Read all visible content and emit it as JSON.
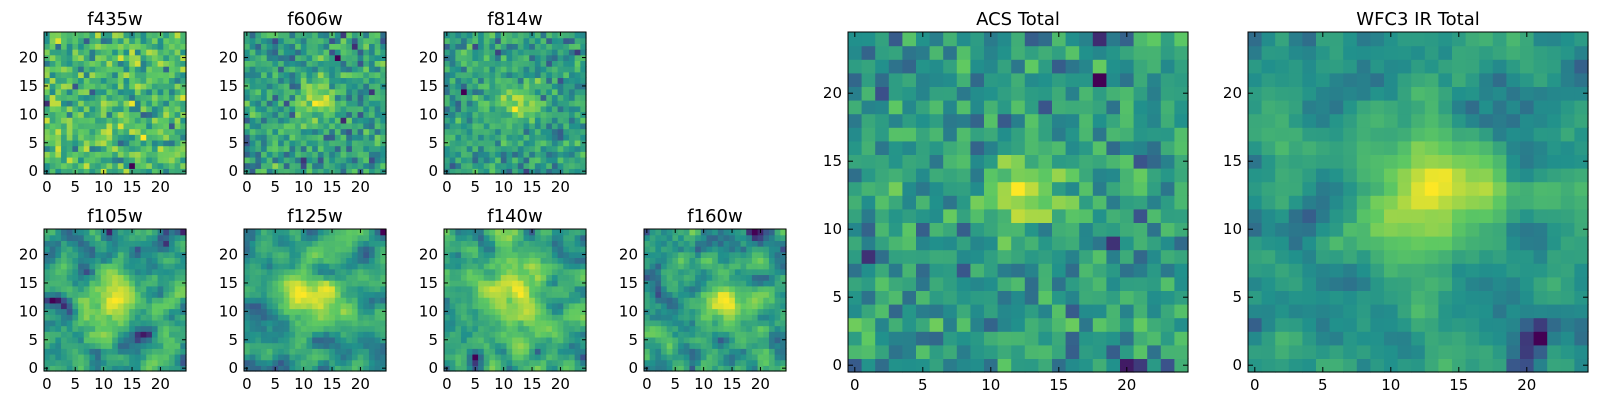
{
  "chart_data": [
    {
      "type": "heatmap",
      "title": "f435w",
      "grid_size": 25,
      "xlim": [
        -0.5,
        24.5
      ],
      "ylim": [
        -0.5,
        24.5
      ],
      "xticks": [
        0,
        5,
        10,
        15,
        20
      ],
      "yticks": [
        0,
        5,
        10,
        15,
        20
      ],
      "source_center": [
        12.5,
        12.5
      ],
      "source_amplitude": 0.0,
      "source_sigma": 2.5,
      "noise_level": 0.95,
      "smoothness": 0,
      "seed": 11
    },
    {
      "type": "heatmap",
      "title": "f606w",
      "grid_size": 25,
      "xlim": [
        -0.5,
        24.5
      ],
      "ylim": [
        -0.5,
        24.5
      ],
      "xticks": [
        0,
        5,
        10,
        15,
        20
      ],
      "yticks": [
        0,
        5,
        10,
        15,
        20
      ],
      "source_center": [
        12.5,
        12.5
      ],
      "source_amplitude": 1.0,
      "source_sigma": 2.2,
      "noise_level": 0.75,
      "smoothness": 0,
      "seed": 22
    },
    {
      "type": "heatmap",
      "title": "f814w",
      "grid_size": 25,
      "xlim": [
        -0.5,
        24.5
      ],
      "ylim": [
        -0.5,
        24.5
      ],
      "xticks": [
        0,
        5,
        10,
        15,
        20
      ],
      "yticks": [
        0,
        5,
        10,
        15,
        20
      ],
      "source_center": [
        12.5,
        12.5
      ],
      "source_amplitude": 1.1,
      "source_sigma": 2.2,
      "noise_level": 0.75,
      "smoothness": 0,
      "seed": 33
    },
    {
      "type": "heatmap",
      "title": "f105w",
      "grid_size": 25,
      "xlim": [
        -0.5,
        24.5
      ],
      "ylim": [
        -0.5,
        24.5
      ],
      "xticks": [
        0,
        5,
        10,
        15,
        20
      ],
      "yticks": [
        0,
        5,
        10,
        15,
        20
      ],
      "source_center": [
        12.5,
        13
      ],
      "source_amplitude": 0.9,
      "source_sigma": 3.0,
      "noise_level": 0.85,
      "smoothness": 1,
      "seed": 44
    },
    {
      "type": "heatmap",
      "title": "f125w",
      "grid_size": 25,
      "xlim": [
        -0.5,
        24.5
      ],
      "ylim": [
        -0.5,
        24.5
      ],
      "xticks": [
        0,
        5,
        10,
        15,
        20
      ],
      "yticks": [
        0,
        5,
        10,
        15,
        20
      ],
      "source_center": [
        12.5,
        12.5
      ],
      "source_amplitude": 1.0,
      "source_sigma": 3.5,
      "noise_level": 0.8,
      "smoothness": 1,
      "seed": 55
    },
    {
      "type": "heatmap",
      "title": "f140w",
      "grid_size": 25,
      "xlim": [
        -0.5,
        24.5
      ],
      "ylim": [
        -0.5,
        24.5
      ],
      "xticks": [
        0,
        5,
        10,
        15,
        20
      ],
      "yticks": [
        0,
        5,
        10,
        15,
        20
      ],
      "source_center": [
        12.5,
        12.5
      ],
      "source_amplitude": 0.9,
      "source_sigma": 3.5,
      "noise_level": 0.85,
      "smoothness": 1,
      "seed": 66
    },
    {
      "type": "heatmap",
      "title": "f160w",
      "grid_size": 25,
      "xlim": [
        -0.5,
        24.5
      ],
      "ylim": [
        -0.5,
        24.5
      ],
      "xticks": [
        0,
        5,
        10,
        15,
        20
      ],
      "yticks": [
        0,
        5,
        10,
        15,
        20
      ],
      "source_center": [
        13,
        13
      ],
      "source_amplitude": 0.9,
      "source_sigma": 3.0,
      "noise_level": 0.85,
      "smoothness": 1,
      "seed": 77
    },
    {
      "type": "heatmap",
      "title": "ACS Total",
      "grid_size": 25,
      "xlim": [
        -0.5,
        24.5
      ],
      "ylim": [
        -0.5,
        24.5
      ],
      "xticks": [
        0,
        5,
        10,
        15,
        20
      ],
      "yticks": [
        0,
        5,
        10,
        15,
        20
      ],
      "source_center": [
        12.5,
        12.5
      ],
      "source_amplitude": 1.2,
      "source_sigma": 2.0,
      "noise_level": 0.7,
      "smoothness": 0,
      "seed": 88
    },
    {
      "type": "heatmap",
      "title": "WFC3 IR Total",
      "grid_size": 25,
      "xlim": [
        -0.5,
        24.5
      ],
      "ylim": [
        -0.5,
        24.5
      ],
      "xticks": [
        0,
        5,
        10,
        15,
        20
      ],
      "yticks": [
        0,
        5,
        10,
        15,
        20
      ],
      "source_center": [
        12.5,
        12.5
      ],
      "source_amplitude": 1.2,
      "source_sigma": 3.0,
      "noise_level": 0.75,
      "smoothness": 1,
      "seed": 99
    }
  ],
  "colormap": [
    "#440154",
    "#3b528b",
    "#21918c",
    "#5ec962",
    "#fde725"
  ]
}
